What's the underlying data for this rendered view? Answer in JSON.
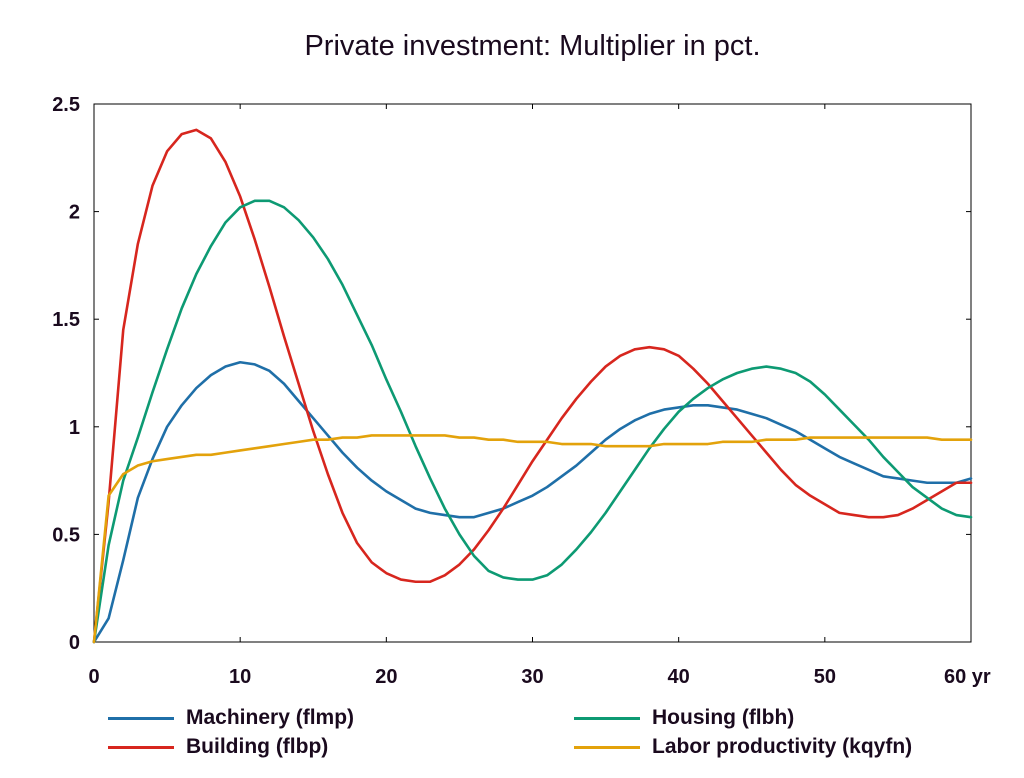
{
  "chart_data": {
    "type": "line",
    "title": "Private investment: Multiplier in pct.",
    "xlabel": "",
    "ylabel": "",
    "xlim": [
      0,
      60
    ],
    "ylim": [
      0,
      2.5
    ],
    "x_ticks": [
      "0",
      "10",
      "20",
      "30",
      "40",
      "50",
      "60 yr"
    ],
    "y_ticks": [
      "0",
      "0.5",
      "1",
      "1.5",
      "2",
      "2.5"
    ],
    "grid": false,
    "legend_position": "bottom",
    "x": [
      0,
      1,
      2,
      3,
      4,
      5,
      6,
      7,
      8,
      9,
      10,
      11,
      12,
      13,
      14,
      15,
      16,
      17,
      18,
      19,
      20,
      21,
      22,
      23,
      24,
      25,
      26,
      27,
      28,
      29,
      30,
      31,
      32,
      33,
      34,
      35,
      36,
      37,
      38,
      39,
      40,
      41,
      42,
      43,
      44,
      45,
      46,
      47,
      48,
      49,
      50,
      51,
      52,
      53,
      54,
      55,
      56,
      57,
      58,
      59,
      60
    ],
    "series": [
      {
        "name": "Machinery (flmp)",
        "color": "#1f6fa8",
        "values": [
          0.0,
          0.11,
          0.38,
          0.67,
          0.85,
          1.0,
          1.1,
          1.18,
          1.24,
          1.28,
          1.3,
          1.29,
          1.26,
          1.2,
          1.12,
          1.04,
          0.96,
          0.88,
          0.81,
          0.75,
          0.7,
          0.66,
          0.62,
          0.6,
          0.59,
          0.58,
          0.58,
          0.6,
          0.62,
          0.65,
          0.68,
          0.72,
          0.77,
          0.82,
          0.88,
          0.94,
          0.99,
          1.03,
          1.06,
          1.08,
          1.09,
          1.1,
          1.1,
          1.09,
          1.08,
          1.06,
          1.04,
          1.01,
          0.98,
          0.94,
          0.9,
          0.86,
          0.83,
          0.8,
          0.77,
          0.76,
          0.75,
          0.74,
          0.74,
          0.74,
          0.76
        ]
      },
      {
        "name": "Building (flbp)",
        "color": "#d7261e",
        "values": [
          0.0,
          0.65,
          1.45,
          1.85,
          2.12,
          2.28,
          2.36,
          2.38,
          2.34,
          2.23,
          2.07,
          1.87,
          1.65,
          1.42,
          1.2,
          0.98,
          0.78,
          0.6,
          0.46,
          0.37,
          0.32,
          0.29,
          0.28,
          0.28,
          0.31,
          0.36,
          0.43,
          0.52,
          0.62,
          0.73,
          0.84,
          0.94,
          1.04,
          1.13,
          1.21,
          1.28,
          1.33,
          1.36,
          1.37,
          1.36,
          1.33,
          1.27,
          1.2,
          1.12,
          1.04,
          0.96,
          0.88,
          0.8,
          0.73,
          0.68,
          0.64,
          0.6,
          0.59,
          0.58,
          0.58,
          0.59,
          0.62,
          0.66,
          0.7,
          0.74,
          0.74
        ]
      },
      {
        "name": "Housing (flbh)",
        "color": "#0d9a73",
        "values": [
          0.0,
          0.45,
          0.75,
          0.95,
          1.16,
          1.36,
          1.55,
          1.71,
          1.84,
          1.95,
          2.02,
          2.05,
          2.05,
          2.02,
          1.96,
          1.88,
          1.78,
          1.66,
          1.52,
          1.38,
          1.22,
          1.07,
          0.91,
          0.76,
          0.62,
          0.5,
          0.4,
          0.33,
          0.3,
          0.29,
          0.29,
          0.31,
          0.36,
          0.43,
          0.51,
          0.6,
          0.7,
          0.8,
          0.9,
          0.99,
          1.07,
          1.13,
          1.18,
          1.22,
          1.25,
          1.27,
          1.28,
          1.27,
          1.25,
          1.21,
          1.15,
          1.08,
          1.01,
          0.94,
          0.86,
          0.79,
          0.72,
          0.67,
          0.62,
          0.59,
          0.58
        ]
      },
      {
        "name": "Labor productivity (kqyfn)",
        "color": "#e3a20b",
        "values": [
          0.0,
          0.68,
          0.78,
          0.82,
          0.84,
          0.85,
          0.86,
          0.87,
          0.87,
          0.88,
          0.89,
          0.9,
          0.91,
          0.92,
          0.93,
          0.94,
          0.94,
          0.95,
          0.95,
          0.96,
          0.96,
          0.96,
          0.96,
          0.96,
          0.96,
          0.95,
          0.95,
          0.94,
          0.94,
          0.93,
          0.93,
          0.93,
          0.92,
          0.92,
          0.92,
          0.91,
          0.91,
          0.91,
          0.91,
          0.92,
          0.92,
          0.92,
          0.92,
          0.93,
          0.93,
          0.93,
          0.94,
          0.94,
          0.94,
          0.95,
          0.95,
          0.95,
          0.95,
          0.95,
          0.95,
          0.95,
          0.95,
          0.95,
          0.94,
          0.94,
          0.94
        ]
      }
    ]
  }
}
